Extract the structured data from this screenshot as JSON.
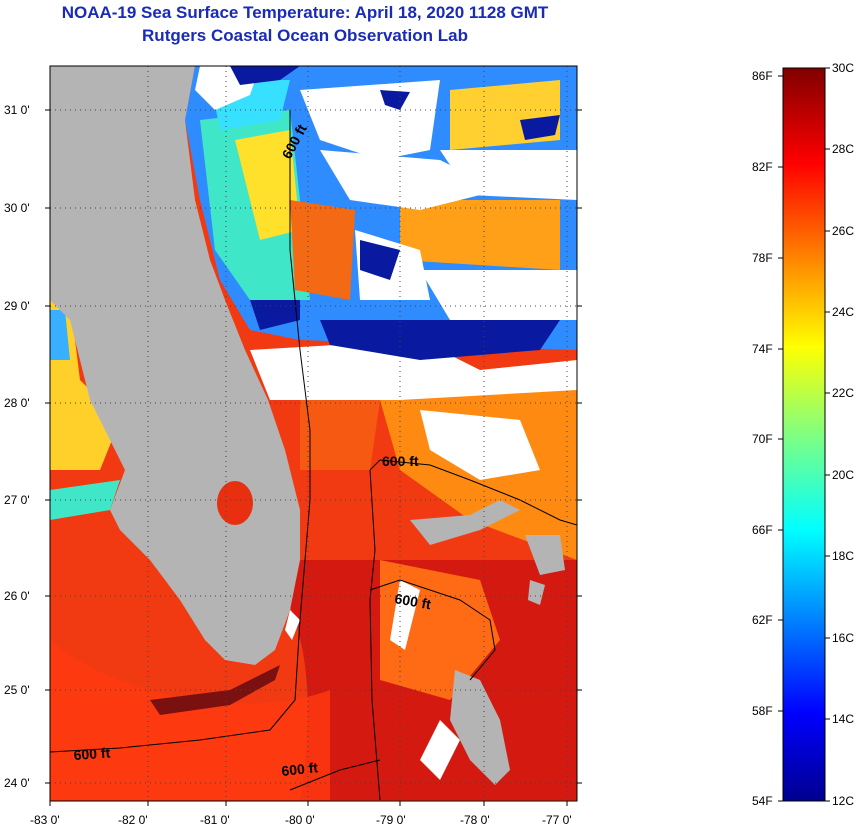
{
  "title_line1": "NOAA-19 Sea Surface Temperature:  April 18, 2020 1128 GMT",
  "title_line2": "Rutgers Coastal Ocean Observation Lab",
  "axes": {
    "x_ticks": [
      "-83 0'",
      "-82 0'",
      "-81 0'",
      "-80 0'",
      "-79 0'",
      "-78 0'",
      "-77 0'"
    ],
    "y_ticks": [
      "31 0'",
      "30 0'",
      "29 0'",
      "28 0'",
      "27 0'",
      "26 0'",
      "25 0'",
      "24 0'"
    ]
  },
  "contour_labels": [
    "600 ft",
    "600 ft",
    "600 ft",
    "600 ft",
    "600 ft"
  ],
  "colorbar": {
    "fahrenheit": [
      "86F",
      "82F",
      "78F",
      "74F",
      "70F",
      "66F",
      "62F",
      "58F",
      "54F"
    ],
    "celsius": [
      "30C",
      "28C",
      "26C",
      "24C",
      "22C",
      "20C",
      "18C",
      "16C",
      "14C",
      "12C"
    ]
  },
  "colors": {
    "land": "#b4b4b4",
    "cloud": "#ffffff",
    "title": "#1a2bb8"
  }
}
